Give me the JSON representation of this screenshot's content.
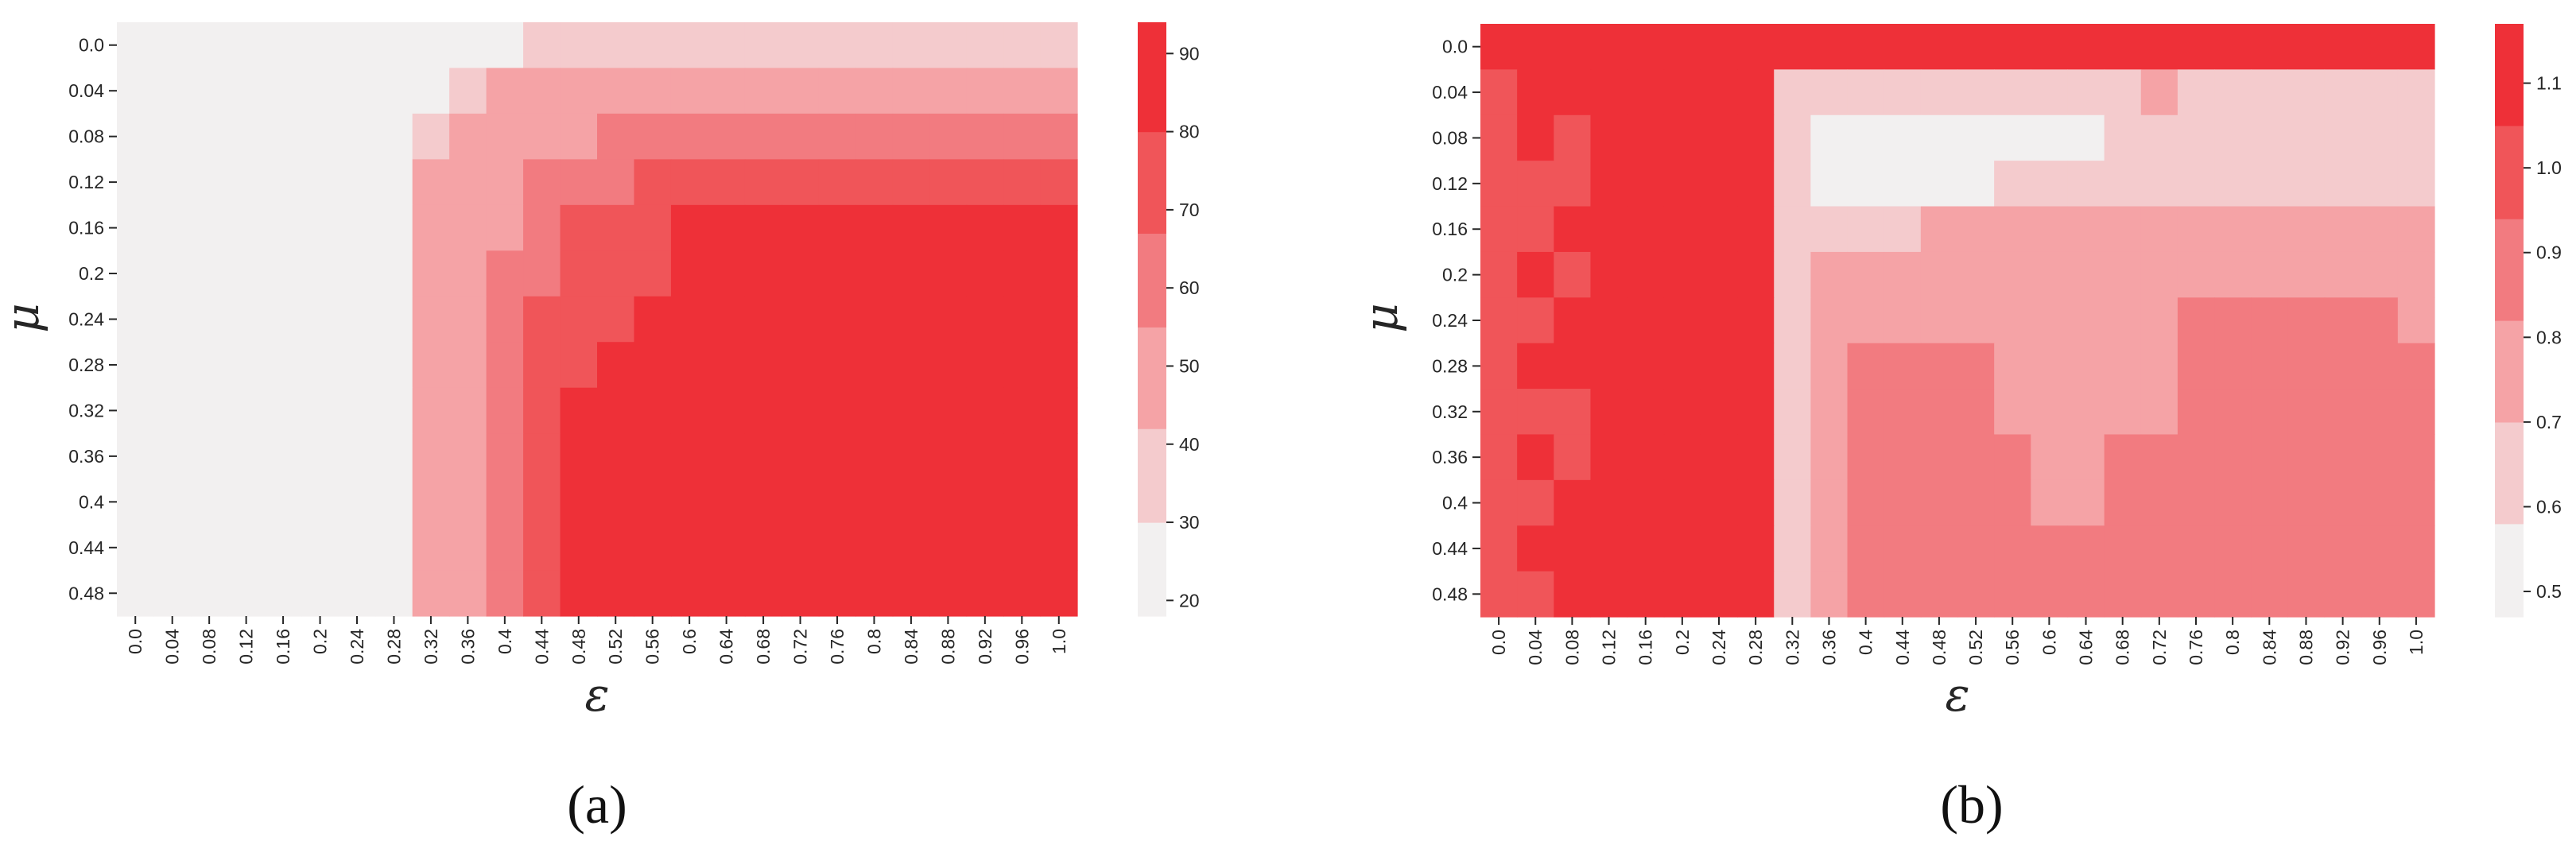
{
  "chart_data": [
    {
      "type": "heatmap",
      "panel_label": "(a)",
      "xlabel": "ε",
      "ylabel": "μ",
      "x_ticks": [
        "0.0",
        "0.04",
        "0.08",
        "0.12",
        "0.16",
        "0.2",
        "0.24",
        "0.28",
        "0.32",
        "0.36",
        "0.4",
        "0.44",
        "0.48",
        "0.52",
        "0.56",
        "0.6",
        "0.64",
        "0.68",
        "0.72",
        "0.76",
        "0.8",
        "0.84",
        "0.88",
        "0.92",
        "0.96",
        "1.0"
      ],
      "y_ticks": [
        "0.0",
        "0.04",
        "0.08",
        "0.12",
        "0.16",
        "0.2",
        "0.24",
        "0.28",
        "0.32",
        "0.36",
        "0.4",
        "0.44",
        "0.48"
      ],
      "colorbar": {
        "range": [
          18,
          94
        ],
        "ticks": [
          "20",
          "30",
          "40",
          "50",
          "60",
          "70",
          "80",
          "90"
        ],
        "bins": [
          {
            "range": [
              18,
              30
            ],
            "color": "#f2f0f0"
          },
          {
            "range": [
              30,
              42
            ],
            "color": "#f4cbcd"
          },
          {
            "range": [
              42,
              55
            ],
            "color": "#f5a3a6"
          },
          {
            "range": [
              55,
              67
            ],
            "color": "#f27b80"
          },
          {
            "range": [
              67,
              80
            ],
            "color": "#f05559"
          },
          {
            "range": [
              80,
              94
            ],
            "color": "#ee3038"
          }
        ]
      },
      "grid": {
        "rows": 13,
        "cols": 26
      },
      "level_rows": [
        "00000000000111111111111111",
        "00000000012222222222222222",
        "00000000122223333333333333",
        "00000000222333444444444444",
        "00000000222344455555555555",
        "00000000223344455555555555",
        "00000000223444555555555555",
        "00000000223445555555555555",
        "00000000223455555555555555",
        "00000000223455555555555555",
        "00000000223455555555555555",
        "00000000223455555555555555",
        "00000000223455555555555555"
      ]
    },
    {
      "type": "heatmap",
      "panel_label": "(b)",
      "xlabel": "ε",
      "ylabel": "μ",
      "x_ticks": [
        "0.0",
        "0.04",
        "0.08",
        "0.12",
        "0.16",
        "0.2",
        "0.24",
        "0.28",
        "0.32",
        "0.36",
        "0.4",
        "0.44",
        "0.48",
        "0.52",
        "0.56",
        "0.6",
        "0.64",
        "0.68",
        "0.72",
        "0.76",
        "0.8",
        "0.84",
        "0.88",
        "0.92",
        "0.96",
        "1.0"
      ],
      "y_ticks": [
        "0.0",
        "0.04",
        "0.08",
        "0.12",
        "0.16",
        "0.2",
        "0.24",
        "0.28",
        "0.32",
        "0.36",
        "0.4",
        "0.44",
        "0.48"
      ],
      "colorbar": {
        "range": [
          0.47,
          1.17
        ],
        "ticks": [
          "0.5",
          "0.6",
          "0.7",
          "0.8",
          "0.9",
          "1.0",
          "1.1"
        ],
        "bins": [
          {
            "range": [
              0.47,
              0.58
            ],
            "color": "#f2f0f0"
          },
          {
            "range": [
              0.58,
              0.7
            ],
            "color": "#f4cbcd"
          },
          {
            "range": [
              0.7,
              0.82
            ],
            "color": "#f5a3a6"
          },
          {
            "range": [
              0.82,
              0.94
            ],
            "color": "#f27b80"
          },
          {
            "range": [
              0.94,
              1.05
            ],
            "color": "#f05559"
          },
          {
            "range": [
              1.05,
              1.17
            ],
            "color": "#ee3038"
          }
        ]
      },
      "grid": {
        "rows": 13,
        "cols": 26
      },
      "level_rows": [
        "55555555555555555555555555",
        "45555555111111111121111111",
        "45455555100000000111111111",
        "44455555100000111111111111",
        "44555555111122222222222222",
        "45455555122222222222222222",
        "44555555122222222223333332",
        "45555555123333222223333333",
        "44455555123333222223333333",
        "45455555123333322333333333",
        "44555555123333322333333333",
        "45555555123333333333333333",
        "44555555123333333333333333"
      ]
    }
  ]
}
